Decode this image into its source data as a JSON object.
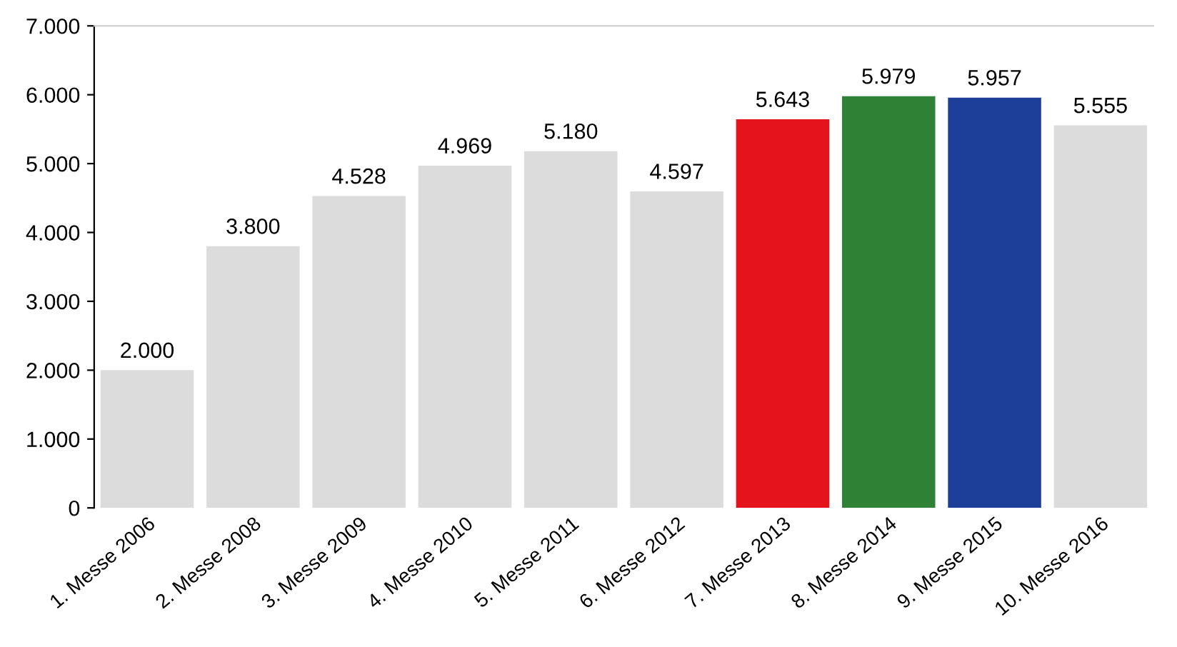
{
  "chart_data": {
    "type": "bar",
    "categories": [
      "1. Messe 2006",
      "2. Messe 2008",
      "3. Messe 2009",
      "4. Messe 2010",
      "5. Messe 2011",
      "6. Messe 2012",
      "7. Messe 2013",
      "8. Messe 2014",
      "9. Messe 2015",
      "10. Messe 2016"
    ],
    "values": [
      2000,
      3800,
      4528,
      4969,
      5180,
      4597,
      5643,
      5979,
      5957,
      5555
    ],
    "colors": [
      "#dcdcdc",
      "#dcdcdc",
      "#dcdcdc",
      "#dcdcdc",
      "#dcdcdc",
      "#dcdcdc",
      "#e3141c",
      "#2f8135",
      "#1d3f9a",
      "#dcdcdc"
    ],
    "value_labels": [
      "2.000",
      "3.800",
      "4.528",
      "4.969",
      "5.180",
      "4.597",
      "5.643",
      "5.979",
      "5.957",
      "5.555"
    ],
    "ylim": [
      0,
      7000
    ],
    "yticks": [
      {
        "value": 0,
        "label": "0"
      },
      {
        "value": 1000,
        "label": "1.000"
      },
      {
        "value": 2000,
        "label": "2.000"
      },
      {
        "value": 3000,
        "label": "3.000"
      },
      {
        "value": 4000,
        "label": "4.000"
      },
      {
        "value": 5000,
        "label": "5.000"
      },
      {
        "value": 6000,
        "label": "6.000"
      },
      {
        "value": 7000,
        "label": "7.000"
      }
    ],
    "grid": false
  }
}
